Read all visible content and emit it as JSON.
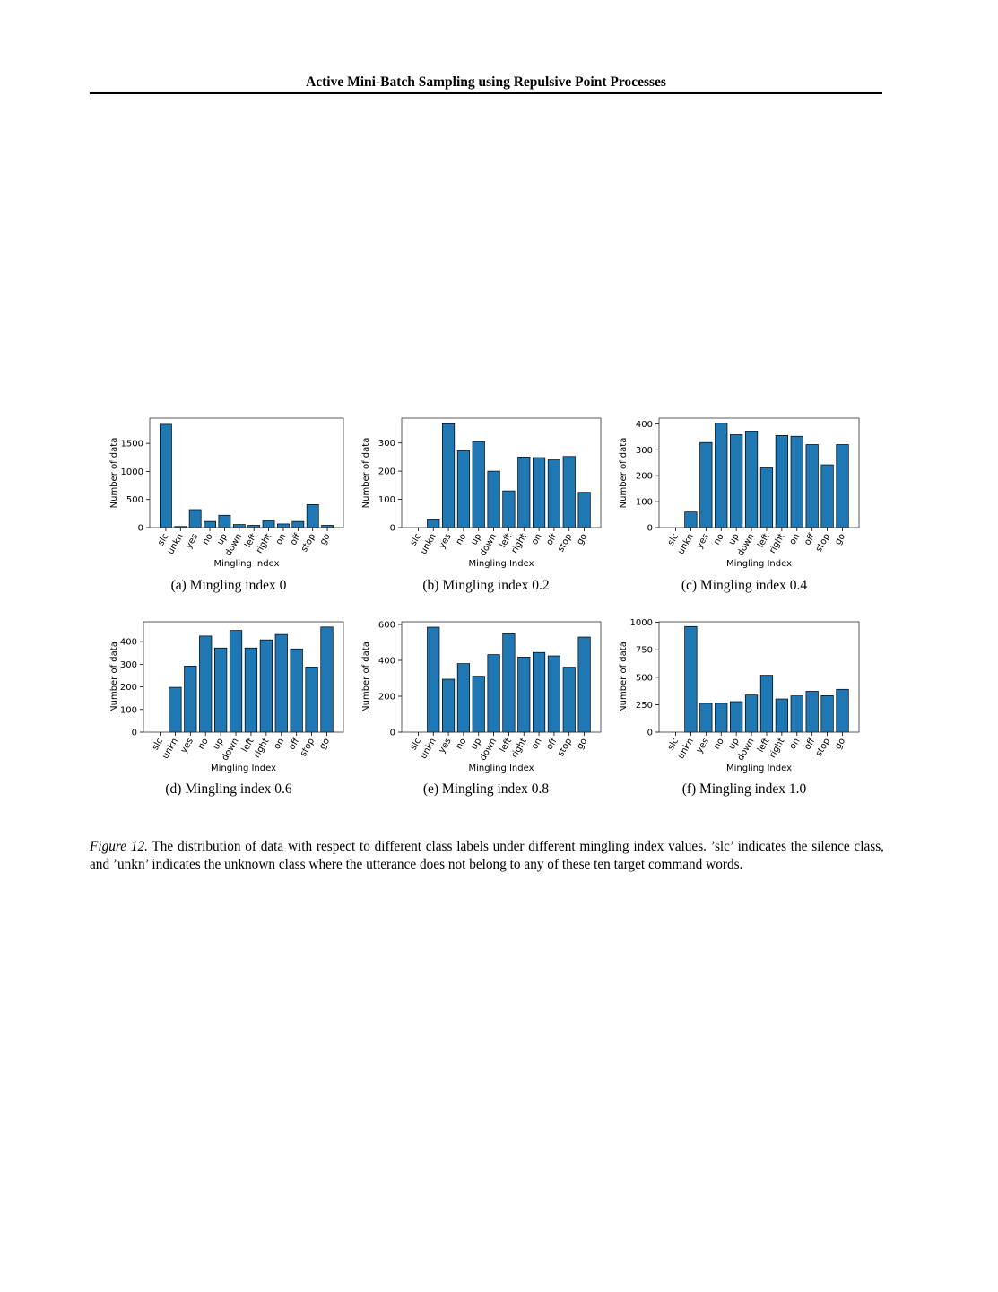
{
  "page": {
    "running_header": "Active Mini-Batch Sampling using Repulsive Point Processes"
  },
  "style": {
    "bar_color": "#1f77b4",
    "bar_edge": "#000000"
  },
  "chart_data": [
    {
      "type": "bar",
      "subcaption": "(a)  Mingling index 0",
      "xlabel": "Mingling Index",
      "ylabel": "Number of data",
      "categories": [
        "slc",
        "unkn",
        "yes",
        "no",
        "up",
        "down",
        "left",
        "right",
        "on",
        "off",
        "stop",
        "go"
      ],
      "values": [
        1840,
        20,
        320,
        110,
        220,
        55,
        40,
        120,
        65,
        110,
        410,
        40
      ],
      "ylim": [
        0,
        1950
      ],
      "yticks": [
        0,
        500,
        1000,
        1500
      ]
    },
    {
      "type": "bar",
      "subcaption": "(b)  Mingling index 0.2",
      "xlabel": "Mingling Index",
      "ylabel": "Number of data",
      "categories": [
        "slc",
        "unkn",
        "yes",
        "no",
        "up",
        "down",
        "left",
        "right",
        "on",
        "off",
        "stop",
        "go"
      ],
      "values": [
        0,
        28,
        368,
        272,
        305,
        200,
        130,
        250,
        248,
        240,
        252,
        125
      ],
      "ylim": [
        0,
        388
      ],
      "yticks": [
        0,
        100,
        200,
        300
      ]
    },
    {
      "type": "bar",
      "subcaption": "(c)  Mingling index 0.4",
      "xlabel": "Mingling Index",
      "ylabel": "Number of data",
      "categories": [
        "slc",
        "unkn",
        "yes",
        "no",
        "up",
        "down",
        "left",
        "right",
        "on",
        "off",
        "stop",
        "go"
      ],
      "values": [
        0,
        60,
        328,
        402,
        358,
        372,
        230,
        355,
        352,
        320,
        242,
        320
      ],
      "ylim": [
        0,
        422
      ],
      "yticks": [
        0,
        100,
        200,
        300,
        400
      ]
    },
    {
      "type": "bar",
      "subcaption": "(d)  Mingling index 0.6",
      "xlabel": "Mingling Index",
      "ylabel": "Number of data",
      "categories": [
        "slc",
        "unkn",
        "yes",
        "no",
        "up",
        "down",
        "left",
        "right",
        "on",
        "off",
        "stop",
        "go"
      ],
      "values": [
        0,
        198,
        292,
        425,
        372,
        450,
        372,
        408,
        432,
        368,
        288,
        465
      ],
      "ylim": [
        0,
        488
      ],
      "yticks": [
        0,
        100,
        200,
        300,
        400
      ]
    },
    {
      "type": "bar",
      "subcaption": "(e)  Mingling index 0.8",
      "xlabel": "Mingling Index",
      "ylabel": "Number of data",
      "categories": [
        "slc",
        "unkn",
        "yes",
        "no",
        "up",
        "down",
        "left",
        "right",
        "on",
        "off",
        "stop",
        "go"
      ],
      "values": [
        0,
        585,
        295,
        382,
        312,
        432,
        548,
        418,
        444,
        425,
        362,
        530
      ],
      "ylim": [
        0,
        615
      ],
      "yticks": [
        0,
        200,
        400,
        600
      ]
    },
    {
      "type": "bar",
      "subcaption": "(f)  Mingling index 1.0",
      "xlabel": "Mingling Index",
      "ylabel": "Number of data",
      "categories": [
        "slc",
        "unkn",
        "yes",
        "no",
        "up",
        "down",
        "left",
        "right",
        "on",
        "off",
        "stop",
        "go"
      ],
      "values": [
        0,
        962,
        262,
        262,
        278,
        338,
        518,
        302,
        330,
        372,
        332,
        390
      ],
      "ylim": [
        0,
        1005
      ],
      "yticks": [
        0,
        250,
        500,
        750,
        1000
      ]
    }
  ],
  "caption": {
    "label": "Figure 12.",
    "text": "The distribution of data with respect to different class labels under different mingling index values. ’slc’ indicates the silence class, and ’unkn’ indicates the unknown class where the utterance does not belong to any of these ten target command words."
  }
}
